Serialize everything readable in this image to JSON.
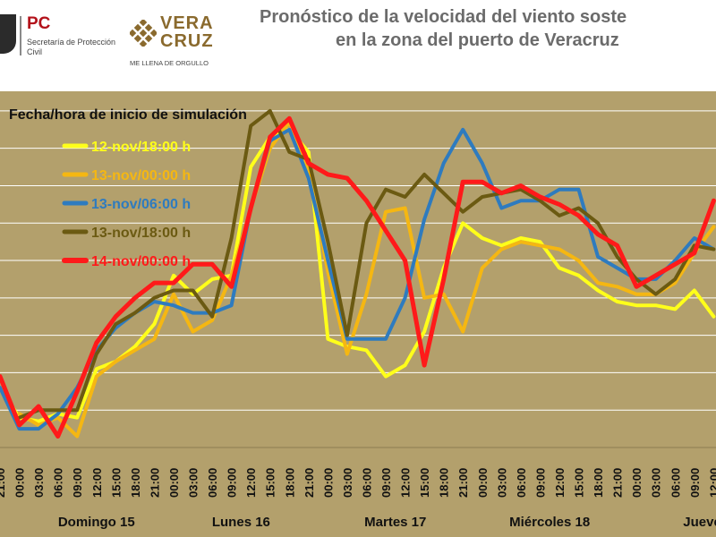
{
  "header": {
    "pc_logo": {
      "abbr": "PC",
      "subtitle": "Secretaría de Protección Civil"
    },
    "veracruz_logo": {
      "word": "VERA\nCRUZ",
      "tagline": "ME LLENA DE ORGULLO"
    },
    "title_line1": "Pronóstico de la velocidad del viento soste",
    "title_line2": "en la zona del puerto de Veracruz"
  },
  "chart_data": {
    "type": "line",
    "title": "Pronóstico de la velocidad del viento sostenido en la zona del puerto de Veracruz",
    "legend_title": "Fecha/hora de inicio de simulación",
    "legend_position": "top-left",
    "grid": true,
    "ylim": [
      0,
      9.5
    ],
    "x_tick_labels": [
      "21:00",
      "00:00",
      "03:00",
      "06:00",
      "09:00",
      "12:00",
      "15:00",
      "18:00",
      "21:00",
      "00:00",
      "03:00",
      "06:00",
      "09:00",
      "12:00",
      "15:00",
      "18:00",
      "21:00",
      "00:00",
      "03:00",
      "06:00",
      "09:00",
      "12:00",
      "15:00",
      "18:00",
      "21:00",
      "00:00",
      "03:00",
      "06:00",
      "09:00",
      "12:00",
      "15:00",
      "18:00",
      "21:00",
      "00:00",
      "03:00",
      "06:00",
      "09:00",
      "12:00"
    ],
    "day_groups": [
      {
        "label": "Domingo 15"
      },
      {
        "label": "Lunes 16"
      },
      {
        "label": "Martes 17"
      },
      {
        "label": "Miércoles 18"
      },
      {
        "label": "Jueves"
      }
    ],
    "series": [
      {
        "name": "12-nov/18:00 h",
        "color": "#ffff1a",
        "values": [
          1.6,
          0.8,
          0.7,
          0.9,
          0.8,
          2.1,
          2.3,
          2.7,
          3.3,
          4.6,
          4.1,
          4.5,
          4.6,
          7.5,
          8.3,
          8.5,
          7.9,
          2.9,
          2.7,
          2.6,
          1.9,
          2.2,
          3.1,
          4.8,
          6.0,
          5.6,
          5.4,
          5.6,
          5.5,
          4.8,
          4.6,
          4.2,
          3.9,
          3.8,
          3.8,
          3.7,
          4.2,
          3.5
        ]
      },
      {
        "name": "13-nov/00:00 h",
        "color": "#f5b712",
        "values": [
          null,
          0.9,
          0.6,
          0.8,
          0.3,
          1.9,
          2.3,
          2.6,
          2.9,
          4.1,
          3.1,
          3.4,
          4.6,
          6.4,
          8.0,
          8.7,
          7.4,
          4.7,
          2.5,
          4.1,
          6.3,
          6.4,
          4.0,
          4.1,
          3.1,
          4.8,
          5.3,
          5.5,
          5.4,
          5.3,
          5.0,
          4.4,
          4.3,
          4.1,
          4.1,
          4.4,
          5.2,
          5.9
        ]
      },
      {
        "name": "13-nov/06:00 h",
        "color": "#2e7bbf",
        "values": [
          1.6,
          0.5,
          0.5,
          0.9,
          1.6,
          2.6,
          3.2,
          3.6,
          3.9,
          3.8,
          3.6,
          3.6,
          3.8,
          6.4,
          8.2,
          8.5,
          7.2,
          5.0,
          2.9,
          2.9,
          2.9,
          4.0,
          6.1,
          7.6,
          8.5,
          7.6,
          6.4,
          6.6,
          6.6,
          6.9,
          6.9,
          5.1,
          4.8,
          4.5,
          4.5,
          5.0,
          5.6,
          5.3
        ]
      },
      {
        "name": "13-nov/18:00 h",
        "color": "#6b5a12",
        "values": [
          null,
          0.8,
          1.0,
          1.0,
          1.0,
          2.5,
          3.3,
          3.6,
          4.0,
          4.2,
          4.2,
          3.5,
          5.6,
          8.6,
          9.0,
          7.9,
          7.7,
          5.5,
          3.0,
          6.0,
          6.9,
          6.7,
          7.3,
          6.8,
          6.3,
          6.7,
          6.8,
          6.9,
          6.6,
          6.2,
          6.4,
          6.0,
          5.1,
          4.5,
          4.1,
          4.5,
          5.4,
          5.3
        ]
      },
      {
        "name": "14-nov/00:00 h",
        "color": "#ff1a1a",
        "values": [
          1.9,
          0.6,
          1.1,
          0.3,
          1.5,
          2.8,
          3.5,
          4.0,
          4.4,
          4.4,
          4.9,
          4.9,
          4.3,
          6.4,
          8.3,
          8.8,
          7.6,
          7.3,
          7.2,
          6.6,
          5.8,
          5.0,
          2.2,
          4.5,
          7.1,
          7.1,
          6.8,
          7.0,
          6.7,
          6.5,
          6.2,
          5.7,
          5.4,
          4.3,
          4.6,
          4.9,
          5.2,
          6.6
        ]
      }
    ]
  }
}
